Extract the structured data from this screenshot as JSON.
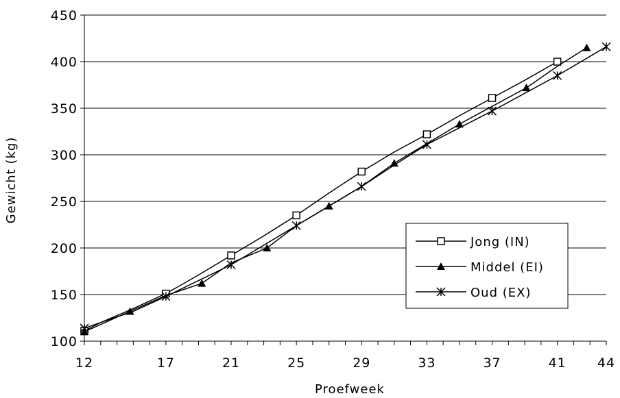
{
  "chart_data": {
    "type": "line",
    "xlabel": "Proefweek",
    "ylabel": "Gewicht (kg)",
    "xticks": [
      12,
      17,
      21,
      25,
      29,
      33,
      37,
      41,
      44
    ],
    "yticks": [
      100,
      150,
      200,
      250,
      300,
      350,
      400,
      450
    ],
    "ylim": [
      100,
      450
    ],
    "grid": "horizontal",
    "legend_position": "right",
    "series": [
      {
        "name": "Jong (IN)",
        "marker": "open-square",
        "x": [
          12,
          13,
          15,
          17,
          19,
          21,
          23,
          25,
          27,
          29,
          31,
          33,
          35,
          37,
          39,
          41
        ],
        "y": [
          111,
          120,
          135,
          151,
          171,
          192,
          213,
          235,
          259,
          282,
          303,
          322,
          342,
          361,
          380,
          400
        ],
        "marked": [
          true,
          false,
          false,
          true,
          false,
          true,
          false,
          true,
          false,
          true,
          false,
          true,
          false,
          true,
          false,
          true
        ]
      },
      {
        "name": "Middel (EI)",
        "marker": "filled-triangle",
        "x": [
          12,
          14.8,
          17,
          19.2,
          21,
          23.2,
          25,
          27,
          29,
          31,
          33,
          35,
          37,
          39.1,
          41,
          42.8
        ],
        "y": [
          110,
          132,
          149,
          162,
          184,
          200,
          224,
          245,
          266,
          291,
          312,
          333,
          352,
          372,
          395,
          415
        ],
        "marked": [
          true,
          true,
          false,
          true,
          false,
          true,
          false,
          true,
          false,
          true,
          false,
          true,
          false,
          true,
          false,
          true
        ]
      },
      {
        "name": "Oud (EX)",
        "marker": "asterisk",
        "x": [
          12,
          15,
          17,
          19,
          21,
          23,
          25,
          27,
          29,
          31,
          33,
          35,
          37,
          39,
          41,
          44
        ],
        "y": [
          114,
          132,
          148,
          165,
          182,
          203,
          224,
          245,
          266,
          289,
          311,
          329,
          347,
          366,
          385,
          416
        ],
        "marked": [
          true,
          false,
          true,
          false,
          true,
          false,
          true,
          false,
          true,
          false,
          true,
          false,
          true,
          false,
          true,
          true
        ]
      }
    ]
  }
}
